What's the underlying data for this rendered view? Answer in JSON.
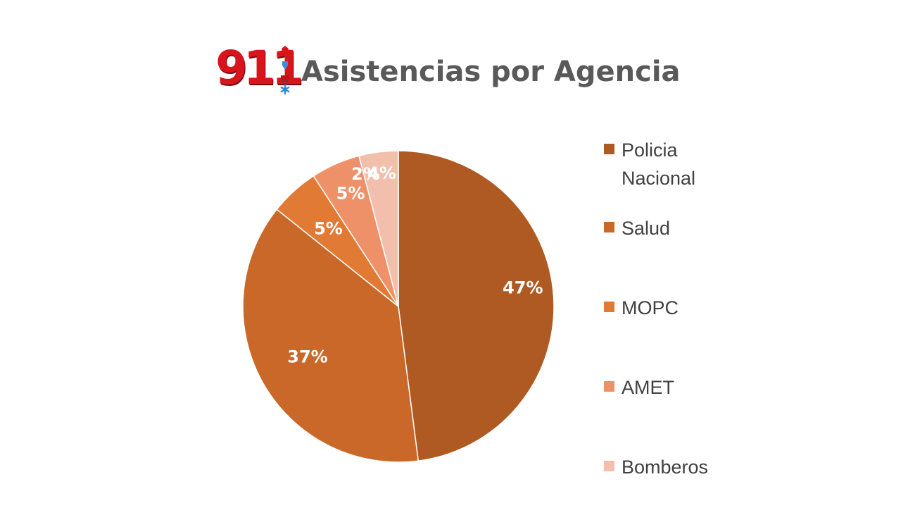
{
  "chart_data": {
    "type": "pie",
    "title": "Asistencias por Agencia",
    "categories": [
      "Policia Nacional",
      "Salud",
      "MOPC",
      "AMET",
      "Bomberos"
    ],
    "values": [
      47,
      37,
      5,
      5,
      4
    ],
    "labels": [
      "47%",
      "37%",
      "5%",
      "5%",
      "4%"
    ],
    "extra_label": "2%",
    "colors": [
      "#ae5a22",
      "#c96828",
      "#e17a34",
      "#ee9168",
      "#f2bfad"
    ],
    "legend_position": "right"
  },
  "header": {
    "logo_text": "911"
  }
}
